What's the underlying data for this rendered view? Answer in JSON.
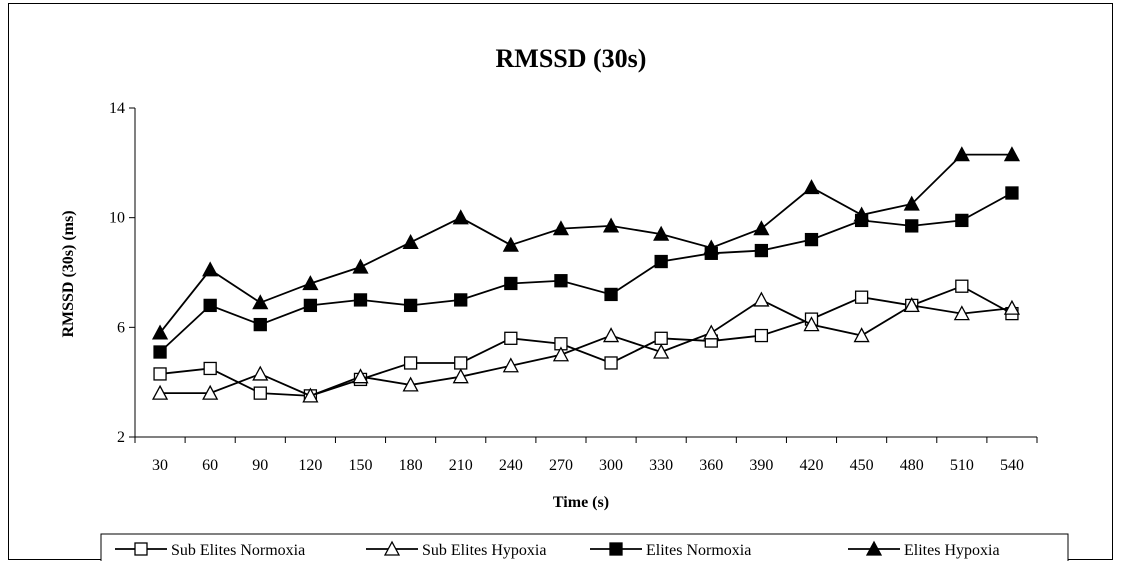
{
  "chart_data": {
    "type": "line",
    "title": "RMSSD (30s)",
    "xlabel": "Time (s)",
    "ylabel": "RMSSD (30s) (ms)",
    "x": [
      30,
      60,
      90,
      120,
      150,
      180,
      210,
      240,
      270,
      300,
      330,
      360,
      390,
      420,
      450,
      480,
      510,
      540
    ],
    "ylim": [
      2,
      14
    ],
    "yticks": [
      2,
      6,
      10,
      14
    ],
    "grid": false,
    "legend_position": "bottom",
    "series": [
      {
        "name": "Sub Elites Normoxia",
        "marker": "square-open",
        "color": "#000000",
        "values": [
          4.3,
          4.5,
          3.6,
          3.5,
          4.1,
          4.7,
          4.7,
          5.6,
          5.4,
          4.7,
          5.6,
          5.5,
          5.7,
          6.3,
          7.1,
          6.8,
          7.5,
          6.5
        ]
      },
      {
        "name": "Sub Elites Hypoxia",
        "marker": "triangle-open",
        "color": "#000000",
        "values": [
          3.6,
          3.6,
          4.3,
          3.5,
          4.2,
          3.9,
          4.2,
          4.6,
          5.0,
          5.7,
          5.1,
          5.8,
          7.0,
          6.1,
          5.7,
          6.8,
          6.5,
          6.7
        ]
      },
      {
        "name": "Elites Normoxia",
        "marker": "square-filled",
        "color": "#000000",
        "values": [
          5.1,
          6.8,
          6.1,
          6.8,
          7.0,
          6.8,
          7.0,
          7.6,
          7.7,
          7.2,
          8.4,
          8.7,
          8.8,
          9.2,
          9.9,
          9.7,
          9.9,
          10.9
        ]
      },
      {
        "name": "Elites Hypoxia",
        "marker": "triangle-filled",
        "color": "#000000",
        "values": [
          5.8,
          8.1,
          6.9,
          7.6,
          8.2,
          9.1,
          10.0,
          9.0,
          9.6,
          9.7,
          9.4,
          8.9,
          9.6,
          11.1,
          10.1,
          10.5,
          12.3,
          12.3
        ]
      }
    ]
  }
}
